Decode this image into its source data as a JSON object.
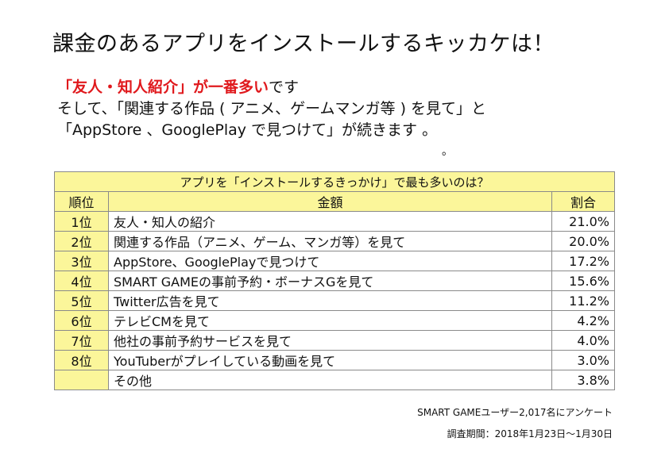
{
  "title": "課金のあるアプリをインストールするキッカケは！",
  "lead": {
    "highlight": "「友人・知人紹介」が一番多い",
    "highlight_tail": "です",
    "line2": "そして、「関連する作品 ( アニメ、ゲームマンガ等 ) を見て」と",
    "line3": "「AppStore 、GooglePlay で見つけて」が続きます 。",
    "stray_dot": "。"
  },
  "table": {
    "caption": "アプリを「インストールするきっかけ」で最も多いのは？",
    "headers": {
      "rank": "順位",
      "item": "金額",
      "share": "割合"
    },
    "rows": [
      {
        "rank": "1位",
        "item": "友人・知人の紹介",
        "share": "21.0%"
      },
      {
        "rank": "2位",
        "item": "関連する作品（アニメ、ゲーム、マンガ等）を見て",
        "share": "20.0%"
      },
      {
        "rank": "3位",
        "item": "AppStore、GooglePlayで見つけて",
        "share": "17.2%"
      },
      {
        "rank": "4位",
        "item": "SMART GAMEの事前予約・ボーナスGを見て",
        "share": "15.6%"
      },
      {
        "rank": "5位",
        "item": "Twitter広告を見て",
        "share": "11.2%"
      },
      {
        "rank": "6位",
        "item": "テレビCMを見て",
        "share": "4.2%"
      },
      {
        "rank": "7位",
        "item": "他社の事前予約サービスを見て",
        "share": "4.0%"
      },
      {
        "rank": "8位",
        "item": "YouTuberがプレイしている動画を見て",
        "share": "3.0%"
      },
      {
        "rank": "",
        "item": "その他",
        "share": "3.8%"
      }
    ]
  },
  "notes": {
    "survey": "SMART GAMEユーザー2,017名にアンケート",
    "period": "調査期間：2018年1月23日～1月30日"
  },
  "colors": {
    "header_bg": "#fbf69a",
    "highlight": "#e0191d"
  }
}
